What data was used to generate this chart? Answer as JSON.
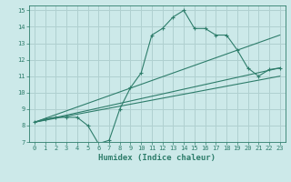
{
  "xlabel": "Humidex (Indice chaleur)",
  "ylabel": "",
  "xlim": [
    -0.5,
    23.5
  ],
  "ylim": [
    7,
    15.3
  ],
  "xticks": [
    0,
    1,
    2,
    3,
    4,
    5,
    6,
    7,
    8,
    9,
    10,
    11,
    12,
    13,
    14,
    15,
    16,
    17,
    18,
    19,
    20,
    21,
    22,
    23
  ],
  "yticks": [
    7,
    8,
    9,
    10,
    11,
    12,
    13,
    14,
    15
  ],
  "background_color": "#cce9e9",
  "grid_color": "#b0d0d0",
  "line_color": "#2e7d6b",
  "line1_x": [
    0,
    1,
    2,
    3,
    4,
    5,
    6,
    7,
    8,
    9,
    10,
    11,
    12,
    13,
    14,
    15,
    16,
    17,
    18,
    19,
    20,
    21,
    22,
    23
  ],
  "line1_y": [
    8.2,
    8.4,
    8.5,
    8.5,
    8.5,
    8.0,
    6.9,
    7.1,
    9.0,
    10.3,
    11.2,
    13.5,
    13.9,
    14.6,
    15.0,
    13.9,
    13.9,
    13.5,
    13.5,
    12.6,
    11.5,
    11.0,
    11.4,
    11.5
  ],
  "line2_x": [
    0,
    23
  ],
  "line2_y": [
    8.2,
    13.5
  ],
  "line3_x": [
    0,
    23
  ],
  "line3_y": [
    8.2,
    11.5
  ],
  "line4_x": [
    0,
    23
  ],
  "line4_y": [
    8.2,
    11.0
  ]
}
